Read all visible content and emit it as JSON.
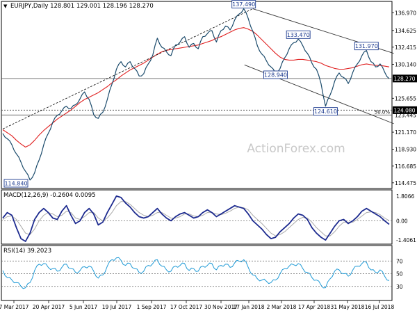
{
  "header": {
    "symbol": "EURJPY",
    "timeframe": "Daily",
    "ohlc": "128.801 129.001 128.196 128.270",
    "macd_label": "MACD(12,26,9) -0.2604 0.0095",
    "rsi_label": "RSI(14) 39.2023"
  },
  "watermark": "ActionForex.com",
  "colors": {
    "price": "#1a4a6b",
    "ma": "#e02020",
    "channel": "#333333",
    "macd": "#1c2a8f",
    "signal": "#aaaaaa",
    "rsi": "#1f9ad6",
    "label_border": "#1c3a8f",
    "label_text": "#1c3a8f",
    "watermark": "#c8c8c8"
  },
  "chart_data": [
    {
      "type": "line",
      "panel": "price",
      "ylim": [
        114.0,
        138.1
      ],
      "y_ticks": [
        "136.970",
        "134.625",
        "132.415",
        "130.140",
        "128.270",
        "125.655",
        "124.080",
        "123.445",
        "121.170",
        "118.930",
        "116.685",
        "114.475"
      ],
      "x_ticks": [
        "7 Mar 2017",
        "20 Apr 2017",
        "5 Jun 2017",
        "19 Jul 2017",
        "1 Sep 2017",
        "17 Oct 2017",
        "30 Nov 2017",
        "17 Jan 2018",
        "2 Mar 2018",
        "17 Apr 2018",
        "31 May 2018",
        "16 Jul 2018"
      ],
      "series": [
        {
          "values": [
            121.0,
            120.3,
            119.5,
            118.3,
            117.2,
            116.0,
            114.84,
            115.8,
            117.5,
            119.5,
            121.0,
            122.5,
            123.4,
            124.0,
            124.6,
            124.3,
            124.8,
            125.6,
            126.5,
            125.5,
            123.5,
            123.0,
            123.8,
            125.5,
            127.5,
            129.5,
            130.5,
            129.8,
            130.5,
            129.6,
            128.6,
            128.9,
            130.2,
            131.4,
            133.6,
            132.4,
            131.8,
            131.3,
            132.7,
            133.1,
            133.8,
            132.4,
            132.9,
            132.2,
            133.8,
            134.2,
            134.6,
            133.1,
            134.6,
            135.2,
            134.7,
            136.0,
            136.8,
            137.49,
            136.2,
            134.5,
            132.6,
            131.5,
            130.6,
            129.8,
            128.94,
            129.6,
            131.0,
            132.2,
            133.0,
            133.47,
            132.6,
            131.6,
            130.3,
            129.5,
            127.6,
            124.61,
            126.1,
            127.9,
            129.0,
            128.4,
            127.6,
            129.1,
            130.2,
            131.3,
            131.97,
            130.5,
            129.8,
            130.2,
            129.1,
            128.27
          ]
        },
        {
          "values": [
            121.5,
            121.1,
            120.7,
            120.1,
            119.6,
            119.2,
            119.5,
            120.1,
            120.8,
            121.4,
            121.9,
            122.4,
            122.9,
            123.3,
            123.7,
            124.1,
            124.6,
            125.1,
            125.5,
            125.8,
            126.1,
            126.4,
            126.8,
            127.2,
            127.7,
            128.1,
            128.6,
            129.0,
            129.4,
            129.7,
            130.0,
            130.3,
            130.7,
            131.1,
            131.5,
            131.8,
            132.0,
            132.1,
            132.2,
            132.3,
            132.4,
            132.5,
            132.6,
            132.7,
            132.9,
            133.1,
            133.3,
            133.6,
            133.8,
            134.1,
            134.4,
            134.7,
            134.9,
            135.0,
            134.8,
            134.5,
            134.0,
            133.4,
            132.8,
            132.2,
            131.6,
            131.1,
            130.8,
            130.7,
            130.7,
            130.8,
            130.8,
            130.7,
            130.6,
            130.5,
            130.3,
            130.0,
            129.8,
            129.6,
            129.5,
            129.5,
            129.6,
            129.7,
            129.9,
            130.1,
            130.2,
            130.1,
            130.0,
            130.0,
            129.9,
            129.8
          ]
        }
      ],
      "annotations": [
        {
          "text": "137.490",
          "value": 137.49,
          "index": 53
        },
        {
          "text": "133.470",
          "value": 133.47,
          "index": 65
        },
        {
          "text": "131.970",
          "value": 131.97,
          "index": 80
        },
        {
          "text": "128.940",
          "value": 128.94,
          "index": 60
        },
        {
          "text": "124.610",
          "value": 124.61,
          "index": 71
        },
        {
          "text": "114.840",
          "value": 114.84,
          "index": 6
        }
      ],
      "channel": {
        "upper": [
          {
            "index": 55,
            "value": 137.5
          },
          {
            "index": 86,
            "value": 131.6
          }
        ],
        "lower": [
          {
            "index": 55,
            "value": 129.7
          },
          {
            "index": 86,
            "value": 122.3
          }
        ]
      },
      "support_trendline": [
        {
          "index": 0,
          "value": 121.6
        },
        {
          "index": 55,
          "value": 137.5
        }
      ],
      "hlines": [
        {
          "value": 128.27,
          "label": "128.270"
        },
        {
          "value": 124.08,
          "label": "124.080"
        },
        {
          "value": 123.445,
          "label": "50.0%"
        }
      ]
    },
    {
      "type": "line",
      "panel": "macd",
      "ylim": [
        -1.6,
        2.05
      ],
      "y_ticks": [
        "1.8066",
        "0.00",
        "-1.4061"
      ],
      "series": [
        {
          "values": [
            0.2,
            0.6,
            0.4,
            -0.5,
            -1.3,
            -1.5,
            -0.9,
            0.1,
            0.6,
            0.9,
            0.6,
            0.2,
            0.1,
            0.7,
            1.1,
            0.4,
            -0.2,
            0.0,
            0.6,
            0.9,
            0.5,
            -0.3,
            -0.1,
            0.6,
            1.2,
            1.8,
            1.7,
            1.3,
            1.0,
            0.6,
            0.3,
            0.2,
            0.3,
            0.6,
            0.9,
            0.5,
            0.2,
            0.0,
            0.3,
            0.5,
            0.6,
            0.4,
            0.2,
            0.3,
            0.6,
            0.8,
            0.6,
            0.3,
            0.5,
            0.7,
            0.9,
            1.1,
            1.0,
            0.9,
            0.5,
            0.0,
            -0.3,
            -0.6,
            -1.0,
            -1.3,
            -1.2,
            -0.8,
            -0.5,
            -0.2,
            0.2,
            0.5,
            0.4,
            0.1,
            -0.5,
            -0.9,
            -1.2,
            -1.4,
            -0.9,
            -0.4,
            0.0,
            0.1,
            -0.2,
            0.0,
            0.3,
            0.7,
            0.9,
            0.7,
            0.5,
            0.3,
            0.0,
            -0.26
          ]
        },
        {
          "values": [
            0.1,
            0.3,
            0.35,
            0.1,
            -0.4,
            -0.9,
            -1.0,
            -0.6,
            0.0,
            0.4,
            0.6,
            0.5,
            0.3,
            0.4,
            0.7,
            0.6,
            0.2,
            0.1,
            0.3,
            0.6,
            0.6,
            0.2,
            0.0,
            0.2,
            0.6,
            1.1,
            1.4,
            1.4,
            1.2,
            0.9,
            0.6,
            0.4,
            0.3,
            0.4,
            0.6,
            0.6,
            0.4,
            0.2,
            0.2,
            0.3,
            0.5,
            0.5,
            0.35,
            0.3,
            0.4,
            0.6,
            0.6,
            0.5,
            0.45,
            0.55,
            0.7,
            0.9,
            1.0,
            0.95,
            0.8,
            0.4,
            0.1,
            -0.2,
            -0.55,
            -0.9,
            -1.1,
            -1.0,
            -0.8,
            -0.5,
            -0.2,
            0.1,
            0.25,
            0.2,
            -0.1,
            -0.5,
            -0.8,
            -1.1,
            -1.1,
            -0.8,
            -0.4,
            -0.1,
            -0.1,
            -0.1,
            0.1,
            0.35,
            0.6,
            0.65,
            0.6,
            0.45,
            0.2,
            0.01
          ]
        }
      ]
    },
    {
      "type": "line",
      "panel": "rsi",
      "ylim": [
        10,
        90
      ],
      "y_ticks": [
        "70",
        "50",
        "30"
      ],
      "series": [
        {
          "values": [
            55,
            44,
            40,
            36,
            30,
            28,
            36,
            55,
            65,
            66,
            60,
            58,
            54,
            60,
            65,
            58,
            52,
            55,
            61,
            62,
            54,
            43,
            48,
            62,
            72,
            75,
            71,
            63,
            66,
            58,
            52,
            54,
            63,
            66,
            72,
            62,
            56,
            54,
            62,
            63,
            66,
            55,
            58,
            54,
            62,
            63,
            66,
            56,
            63,
            65,
            60,
            67,
            70,
            72,
            60,
            48,
            42,
            40,
            38,
            36,
            40,
            50,
            58,
            62,
            64,
            66,
            58,
            52,
            44,
            40,
            32,
            28,
            42,
            54,
            56,
            50,
            46,
            56,
            62,
            66,
            68,
            56,
            52,
            56,
            46,
            39.2
          ]
        }
      ]
    }
  ]
}
